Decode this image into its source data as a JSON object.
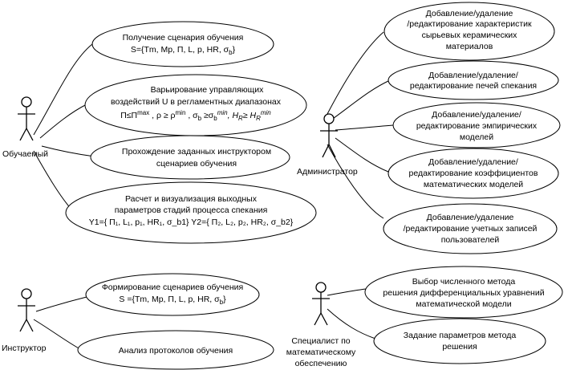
{
  "actors": {
    "learner": "Обучаемый",
    "admin": "Администратор",
    "instructor": "Инструктор",
    "math_specialist": [
      "Специалист по",
      "математическому",
      "обеспечению"
    ]
  },
  "use_cases": {
    "get_scenario": {
      "line1": "Получение сценария обучения",
      "line2_main": "S={Tm, Mp, П, L, p, HR, σ",
      "line2_sub": "b",
      "line2_end": "}"
    },
    "vary_controls": {
      "line1": "Варьирование управляющих",
      "line2": "воздействий U в регламентных диапазонах",
      "line3": "П≤П",
      "line3_sup1": "max",
      "line3_b": " , ρ ≥ ρ",
      "line3_sup2": "min",
      "line3_c": " , σ",
      "line3_sub1": "b",
      "line3_d": " ≥σ",
      "line3_sub2": "b",
      "line3_sup3": "min",
      "line3_e": ", H",
      "line3_sub3": "R",
      "line3_f": "≥ H",
      "line3_sub4": "R",
      "line3_sup4": "min"
    },
    "pass_scenarios": [
      "Прохождение заданных инструктором",
      "сценариев обучения"
    ],
    "calc_output": {
      "line1": "Расчет и визуализация выходных",
      "line2": "параметров стадий процесса спекания",
      "line3": "Y1={ П₁, L₁, p₁, HR₁, σ_b1} Y2={ П₂, L₂, p₂, HR₂, σ_b2}"
    },
    "edit_materials": [
      "Добавление/удаление",
      "/редактирование характеристик",
      "сырьевых керамических",
      "материалов"
    ],
    "edit_furnaces": [
      "Добавление/удаление/",
      "редактирование печей спекания"
    ],
    "edit_models": [
      "Добавление/удаление/",
      "редактирование эмпирических",
      "моделей"
    ],
    "edit_coefficients": [
      "Добавление/удаление/",
      "редактирование коэффициентов",
      "математических моделей"
    ],
    "edit_accounts": [
      "Добавление/удаление",
      "/редактирование учетных записей",
      "пользователей"
    ],
    "form_scenarios": {
      "line1": "Формирование сценариев обучения",
      "line2_main": "S ={Tm, Mp, П, L, p, HR, σ",
      "line2_sub": "b",
      "line2_end": "}"
    },
    "analyze_logs": "Анализ протоколов обучения",
    "choose_method": [
      "Выбор численного метода",
      "решения дифференциальных уравнений",
      "математической модели"
    ],
    "set_method_params": [
      "Задание параметров метода",
      "решения"
    ]
  }
}
